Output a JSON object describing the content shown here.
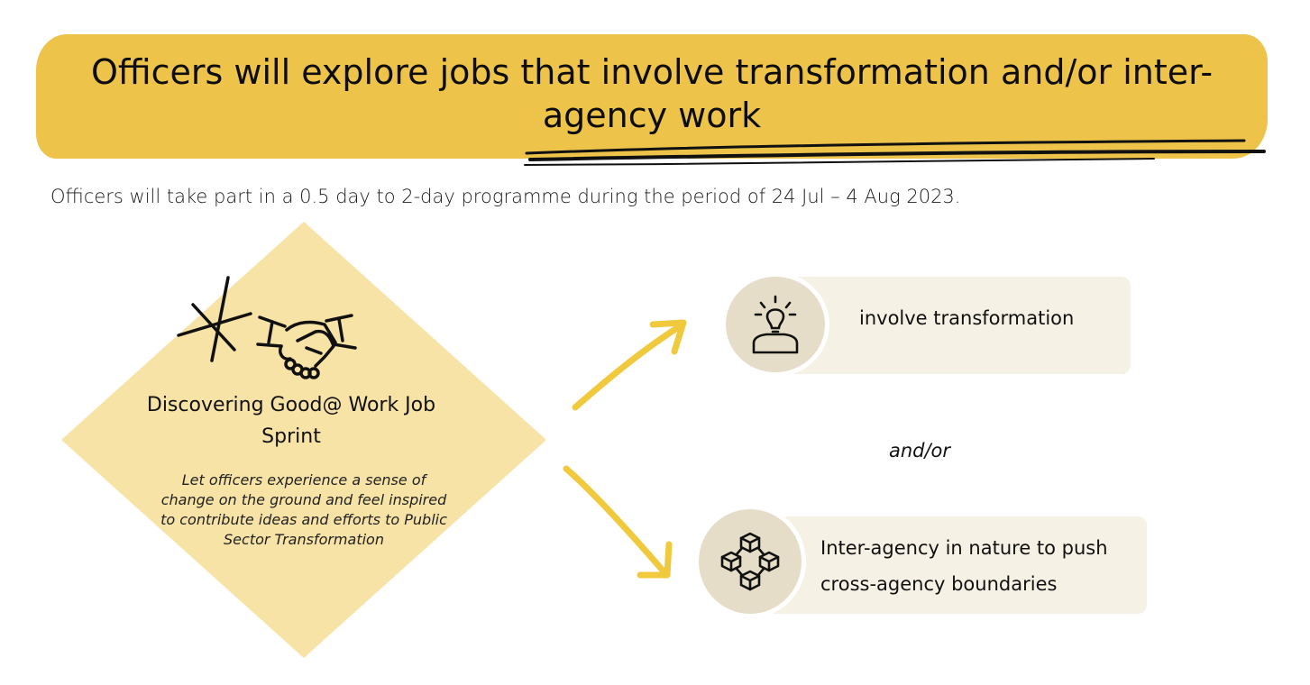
{
  "banner": {
    "title": "Officers will explore jobs that involve transformation and/or inter-agency work"
  },
  "subtitle": "Officers will take part in a 0.5 day to 2-day programme during the period of 24 Jul – 4 Aug 2023.",
  "sprint": {
    "title": "Discovering Good@ Work Job Sprint",
    "description": "Let officers experience a sense of change on the ground and feel inspired to contribute ideas and efforts to Public Sector Transformation",
    "icon": "handshake-icon"
  },
  "options": [
    {
      "label": "involve transformation",
      "icon": "lightbulb-person-icon"
    },
    {
      "label": "Inter-agency in nature to push cross-agency boundaries",
      "icon": "network-cubes-icon"
    }
  ],
  "connector": "and/or",
  "colors": {
    "banner": "#EEC34A",
    "diamond": "#F7E3A6",
    "arrow": "#F0C93C",
    "pill": "#F5F1E4",
    "icon_circle": "#E5DDC7"
  }
}
